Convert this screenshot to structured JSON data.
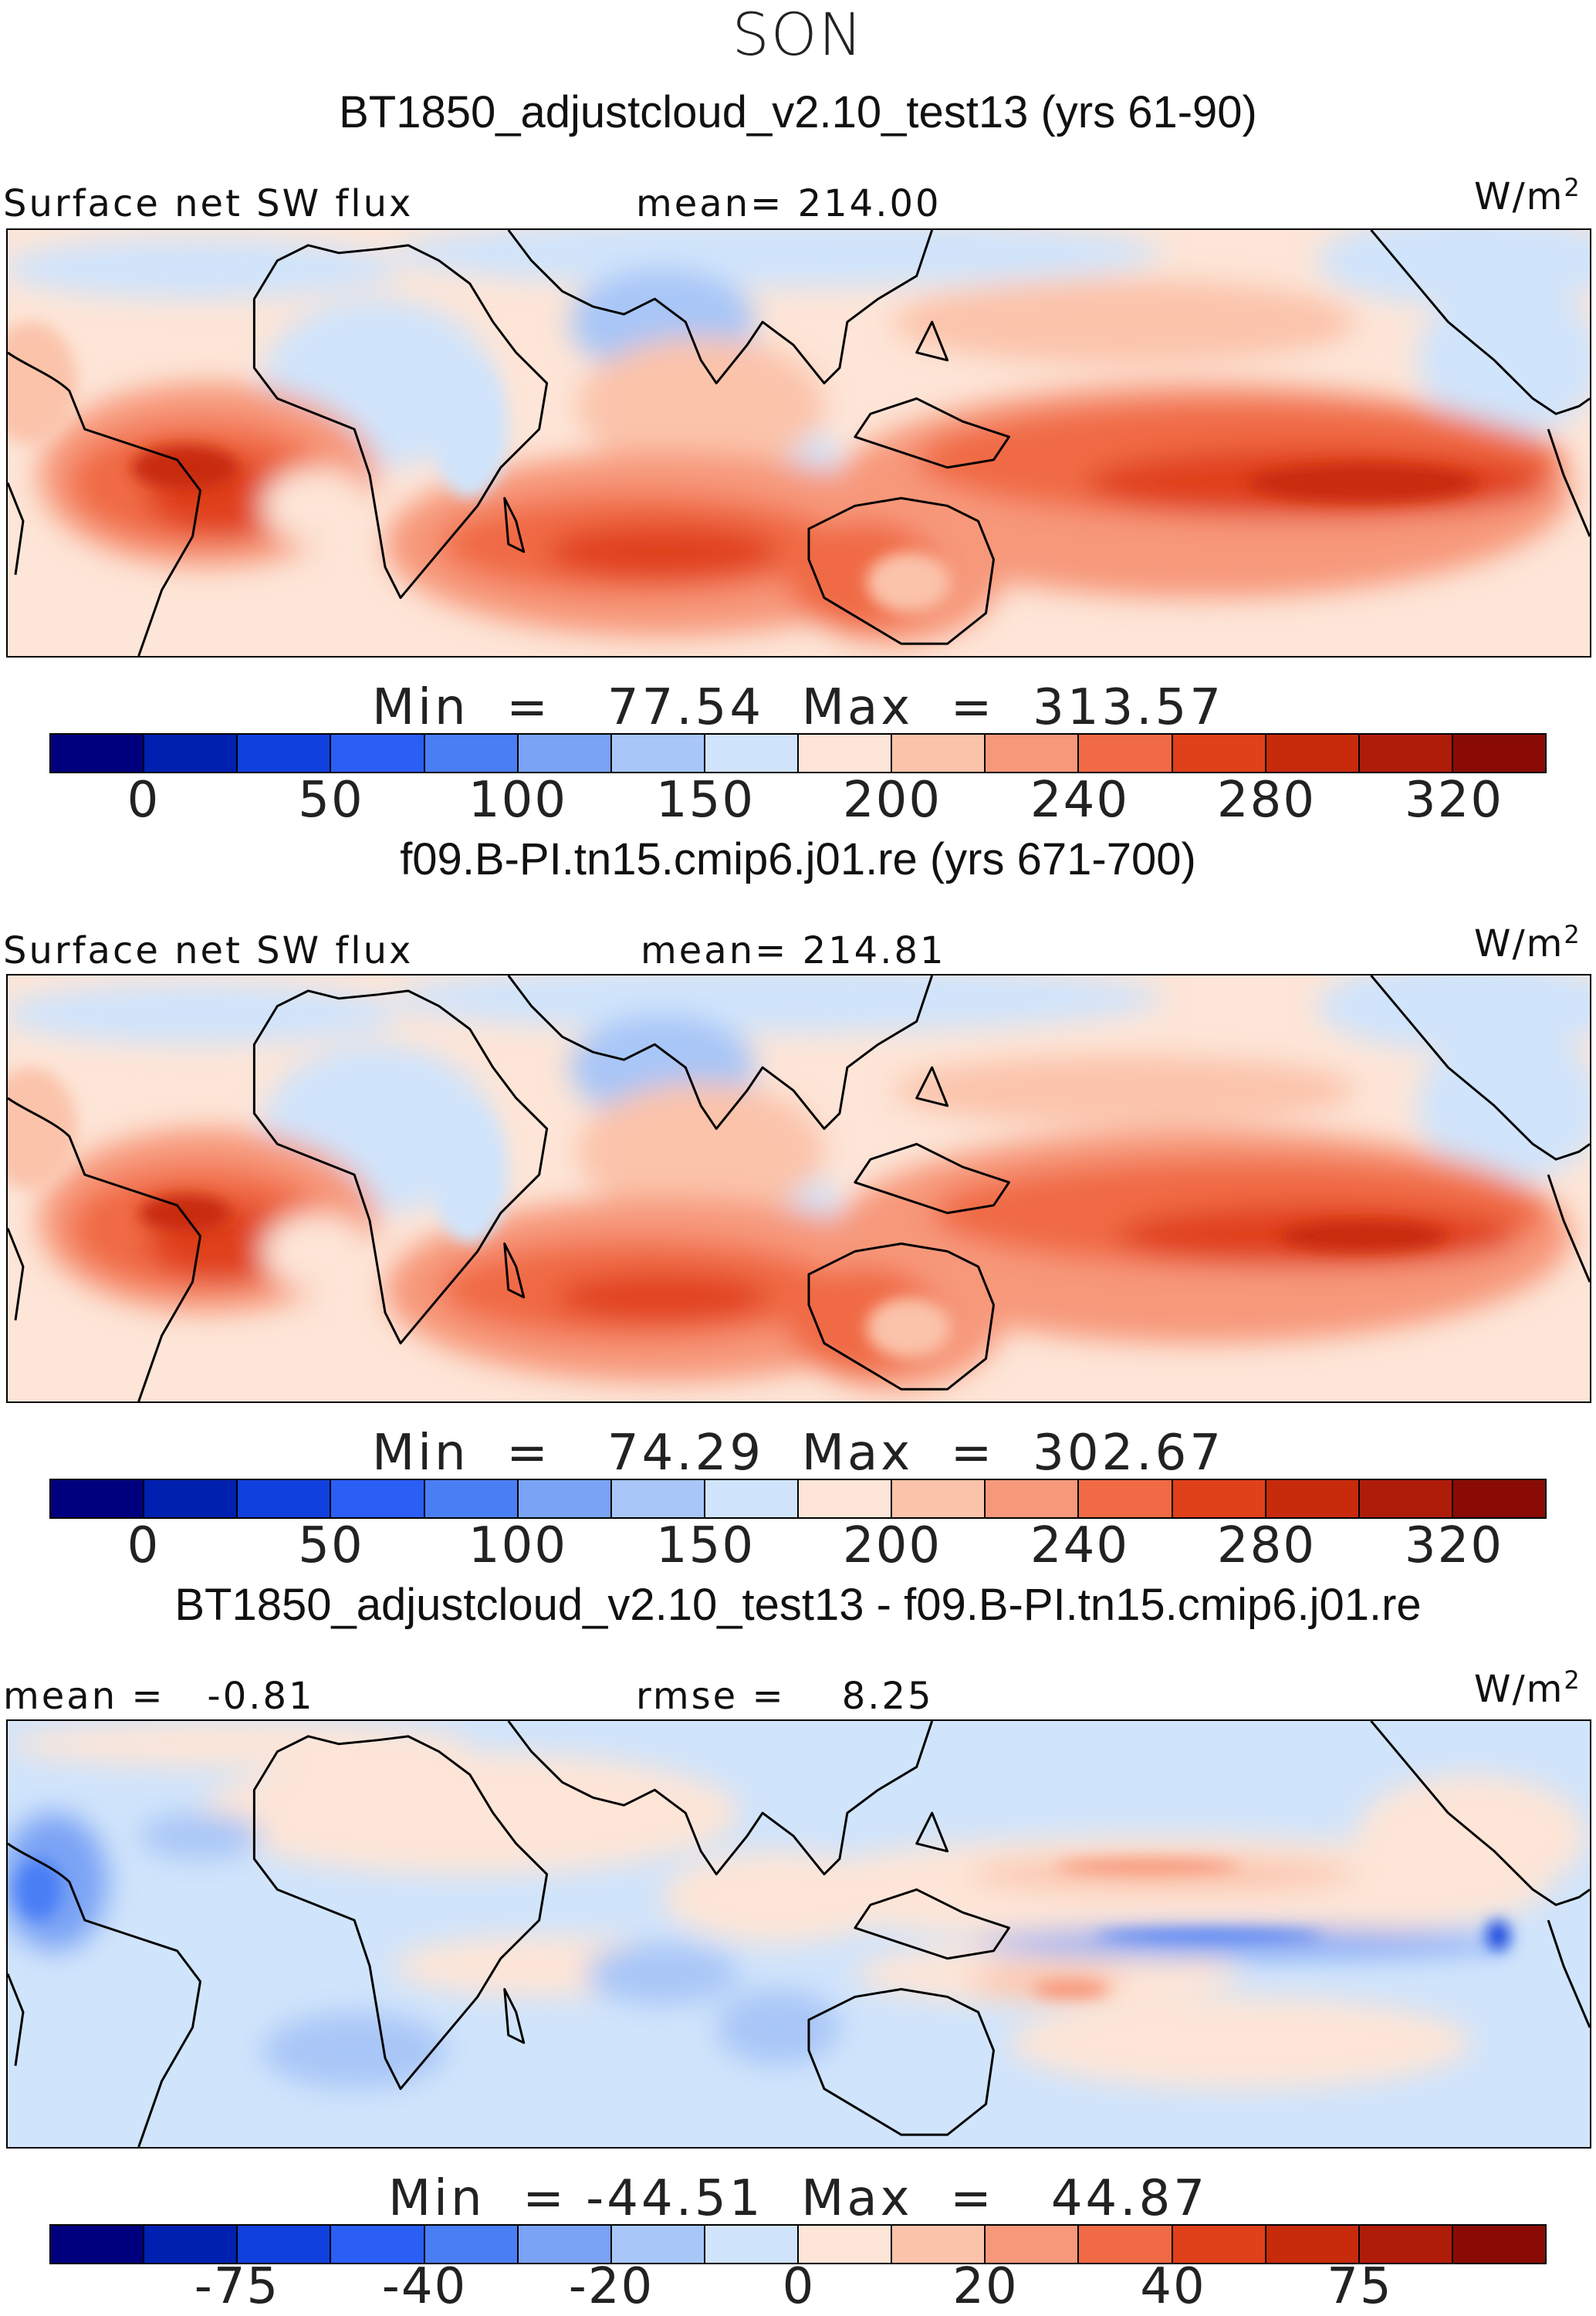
{
  "season": "SON",
  "colorbar_colors": [
    "#00007f",
    "#0020b0",
    "#1040dd",
    "#2a5ef5",
    "#4a7ef5",
    "#7aa3f5",
    "#a8c6f7",
    "#d0e4fb",
    "#fde5d7",
    "#fbc3aa",
    "#f7987a",
    "#f06a45",
    "#e0401a",
    "#c82a0c",
    "#b01c0a",
    "#8a0b05"
  ],
  "panels": [
    {
      "title": "BT1850_adjustcloud_v2.10_test13 (yrs 61-90)",
      "left_label": "Surface net SW flux",
      "center_label": "mean= 214.00",
      "unit": "W/m",
      "unit_exp": "2",
      "min_label": "Min",
      "eq": "=",
      "min_value": "77.54",
      "max_label": "Max",
      "max_value": "313.57",
      "ticks": [
        "0",
        "50",
        "100",
        "150",
        "200",
        "240",
        "280",
        "320"
      ]
    },
    {
      "title": "f09.B-PI.tn15.cmip6.j01.re (yrs 671-700)",
      "left_label": "Surface net SW flux",
      "center_label": "mean= 214.81",
      "unit": "W/m",
      "unit_exp": "2",
      "min_label": "Min",
      "eq": "=",
      "min_value": "74.29",
      "max_label": "Max",
      "max_value": "302.67",
      "ticks": [
        "0",
        "50",
        "100",
        "150",
        "200",
        "240",
        "280",
        "320"
      ]
    },
    {
      "title": "BT1850_adjustcloud_v2.10_test13 - f09.B-PI.tn15.cmip6.j01.re",
      "left_label": "mean =   -0.81",
      "center_label": "rmse =    8.25",
      "unit": "W/m",
      "unit_exp": "2",
      "min_label": "Min",
      "eq": "=",
      "min_value": "-44.51",
      "max_label": "Max",
      "max_value": "44.87",
      "ticks": [
        "-75",
        "-40",
        "-20",
        "0",
        "20",
        "40",
        "75"
      ]
    }
  ]
}
